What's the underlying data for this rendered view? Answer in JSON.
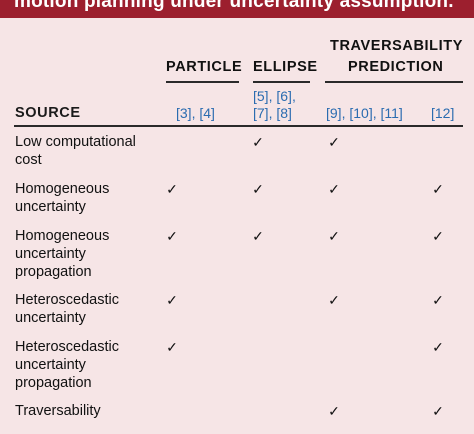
{
  "title": "motion planning under uncertainty assumption.",
  "headers": {
    "source": "SOURCE",
    "particle": "PARTICLE",
    "ellipse": "ELLIPSE",
    "traversability_line1": "TRAVERSABILITY",
    "traversability_line2": "PREDICTION"
  },
  "references": {
    "particle": [
      "[3]",
      "[4]"
    ],
    "ellipse_line1": [
      "[5]",
      "[6]"
    ],
    "ellipse_line2": [
      "[7]",
      "[8]"
    ],
    "traversability": [
      "[9]",
      "[10]",
      "[11]",
      "[12]"
    ]
  },
  "check_symbol": "✓",
  "rows": [
    {
      "label_lines": [
        "Low computational",
        "cost"
      ],
      "checks": [
        false,
        true,
        true,
        false
      ]
    },
    {
      "label_lines": [
        "Homogeneous",
        "uncertainty"
      ],
      "checks": [
        true,
        true,
        true,
        true
      ]
    },
    {
      "label_lines": [
        "Homogeneous",
        "uncertainty",
        "propagation"
      ],
      "checks": [
        true,
        true,
        true,
        true
      ]
    },
    {
      "label_lines": [
        "Heteroscedastic",
        "uncertainty"
      ],
      "checks": [
        true,
        false,
        true,
        true
      ]
    },
    {
      "label_lines": [
        "Heteroscedastic",
        "uncertainty",
        "propagation"
      ],
      "checks": [
        true,
        false,
        false,
        true
      ]
    },
    {
      "label_lines": [
        "Traversability"
      ],
      "checks": [
        false,
        false,
        true,
        true
      ]
    }
  ]
}
